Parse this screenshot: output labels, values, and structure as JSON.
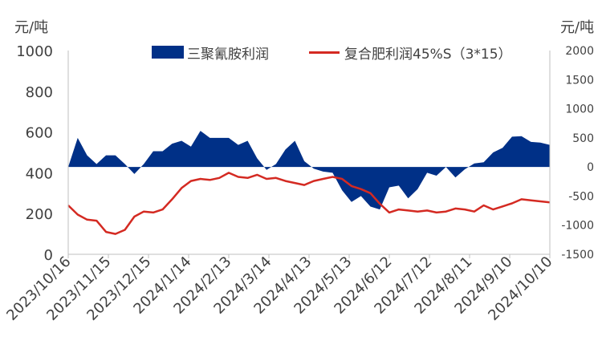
{
  "chart_data": {
    "type": "area+line",
    "unit_left": "元/吨",
    "unit_right": "元/吨",
    "legend_placement": "top-center",
    "grid": false,
    "left_axis": {
      "ylim": [
        0,
        1000
      ],
      "ticks": [
        0,
        200,
        400,
        600,
        800,
        1000
      ],
      "tick_labels": [
        "0",
        "200",
        "400",
        "600",
        "800",
        "1000"
      ]
    },
    "right_axis": {
      "ylim": [
        -1500,
        2000
      ],
      "ticks": [
        -1500,
        -1000,
        -500,
        0,
        500,
        1000,
        1500,
        2000
      ],
      "tick_labels": [
        "-1500",
        "-1000",
        "-500",
        "0",
        "500",
        "1000",
        "1500",
        "2000"
      ]
    },
    "x_tick_labels": [
      "2023/10/16",
      "2023/11/15",
      "2023/12/15",
      "2024/1/14",
      "2024/2/13",
      "2024/3/14",
      "2024/4/13",
      "2024/5/13",
      "2024/6/12",
      "2024/7/12",
      "2024/8/11",
      "2024/9/10",
      "2024/10/10"
    ],
    "series": [
      {
        "name": "三聚氰胺利润",
        "type": "area",
        "axis": "right",
        "color": "#003087",
        "values": [
          0,
          500,
          200,
          50,
          200,
          200,
          50,
          -120,
          50,
          270,
          270,
          400,
          450,
          350,
          620,
          500,
          500,
          500,
          380,
          450,
          150,
          -50,
          50,
          300,
          450,
          100,
          -30,
          -80,
          -100,
          -400,
          -600,
          -500,
          -680,
          -730,
          -350,
          -320,
          -540,
          -380,
          -100,
          -150,
          0,
          -180,
          -40,
          60,
          80,
          250,
          330,
          520,
          530,
          430,
          420,
          380
        ]
      },
      {
        "name": "复合肥利润45%S（3*15）",
        "type": "line",
        "axis": "left",
        "color": "#d42a22",
        "values": [
          240,
          195,
          170,
          165,
          110,
          100,
          120,
          185,
          210,
          205,
          220,
          270,
          325,
          360,
          370,
          365,
          375,
          400,
          380,
          375,
          390,
          370,
          375,
          360,
          350,
          340,
          360,
          370,
          380,
          370,
          335,
          320,
          300,
          248,
          205,
          220,
          215,
          210,
          215,
          205,
          210,
          225,
          220,
          210,
          240,
          220,
          235,
          250,
          270,
          265,
          260,
          255
        ]
      }
    ]
  }
}
